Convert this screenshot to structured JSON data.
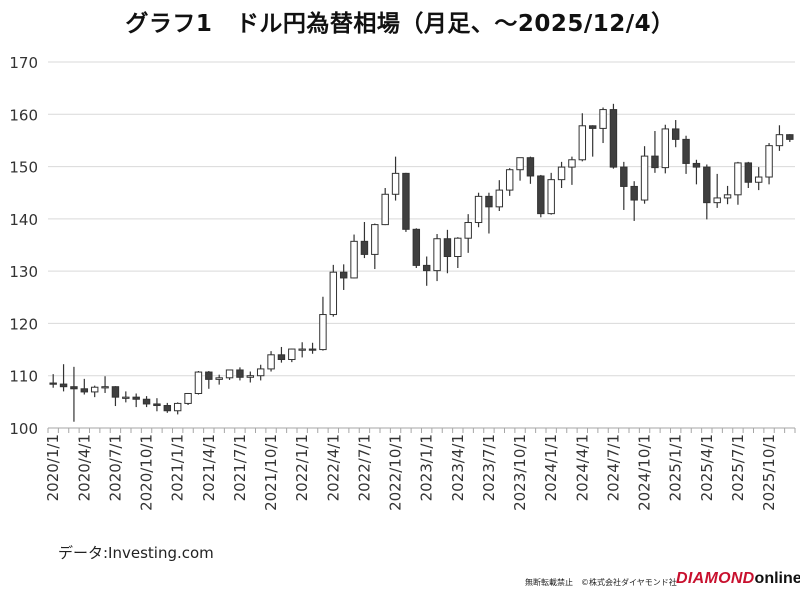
{
  "title": "グラフ1　ドル円為替相場（月足、〜2025/12/4）",
  "source_note": "データ:Investing.com",
  "footer_notice": "無断転載禁止　©株式会社ダイヤモンド社",
  "brand": {
    "name": "DIAMOND",
    "suffix": "online"
  },
  "colors": {
    "up_fill": "#ffffff",
    "down_fill": "#3f3f3f",
    "stroke": "#333333",
    "grid": "#d9d9d9",
    "axis": "#a6a6a6",
    "brand": "#c8102e"
  },
  "chart_data": {
    "type": "candlestick",
    "title": "グラフ1　ドル円為替相場（月足、〜2025/12/4）",
    "xlabel": "",
    "ylabel": "",
    "ylim": [
      100,
      170
    ],
    "y_ticks": [
      100,
      110,
      120,
      130,
      140,
      150,
      160,
      170
    ],
    "grid": true,
    "x_tick_labels": [
      "2020/1/1",
      "2020/4/1",
      "2020/7/1",
      "2020/10/1",
      "2021/1/1",
      "2021/4/1",
      "2021/7/1",
      "2021/10/1",
      "2022/1/1",
      "2022/4/1",
      "2022/7/1",
      "2022/10/1",
      "2023/1/1",
      "2023/4/1",
      "2023/7/1",
      "2023/10/1",
      "2024/1/1",
      "2024/4/1",
      "2024/7/1",
      "2024/10/1",
      "2025/1/1",
      "2025/4/1",
      "2025/7/1",
      "2025/10/1"
    ],
    "candles": [
      {
        "date": "2020/1/1",
        "open": 108.6,
        "high": 110.3,
        "low": 107.7,
        "close": 108.4
      },
      {
        "date": "2020/2/1",
        "open": 108.4,
        "high": 112.2,
        "low": 107.0,
        "close": 107.9
      },
      {
        "date": "2020/3/1",
        "open": 107.9,
        "high": 111.7,
        "low": 101.2,
        "close": 107.5
      },
      {
        "date": "2020/4/1",
        "open": 107.5,
        "high": 109.4,
        "low": 106.4,
        "close": 106.9
      },
      {
        "date": "2020/5/1",
        "open": 106.9,
        "high": 108.1,
        "low": 105.9,
        "close": 107.8
      },
      {
        "date": "2020/6/1",
        "open": 107.8,
        "high": 109.9,
        "low": 106.7,
        "close": 107.9
      },
      {
        "date": "2020/7/1",
        "open": 107.9,
        "high": 108.0,
        "low": 104.2,
        "close": 105.9
      },
      {
        "date": "2020/8/1",
        "open": 105.9,
        "high": 107.0,
        "low": 104.9,
        "close": 105.9
      },
      {
        "date": "2020/9/1",
        "open": 105.9,
        "high": 106.6,
        "low": 104.0,
        "close": 105.5
      },
      {
        "date": "2020/10/1",
        "open": 105.5,
        "high": 106.1,
        "low": 104.0,
        "close": 104.6
      },
      {
        "date": "2020/11/1",
        "open": 104.6,
        "high": 105.7,
        "low": 103.2,
        "close": 104.3
      },
      {
        "date": "2020/12/1",
        "open": 104.3,
        "high": 104.8,
        "low": 102.9,
        "close": 103.3
      },
      {
        "date": "2021/1/1",
        "open": 103.3,
        "high": 104.9,
        "low": 102.6,
        "close": 104.7
      },
      {
        "date": "2021/2/1",
        "open": 104.7,
        "high": 106.7,
        "low": 104.4,
        "close": 106.6
      },
      {
        "date": "2021/3/1",
        "open": 106.6,
        "high": 110.9,
        "low": 106.4,
        "close": 110.7
      },
      {
        "date": "2021/4/1",
        "open": 110.7,
        "high": 110.9,
        "low": 107.5,
        "close": 109.3
      },
      {
        "date": "2021/5/1",
        "open": 109.3,
        "high": 110.2,
        "low": 108.3,
        "close": 109.6
      },
      {
        "date": "2021/6/1",
        "open": 109.6,
        "high": 111.1,
        "low": 109.2,
        "close": 111.1
      },
      {
        "date": "2021/7/1",
        "open": 111.1,
        "high": 111.6,
        "low": 109.1,
        "close": 109.7
      },
      {
        "date": "2021/8/1",
        "open": 109.7,
        "high": 110.8,
        "low": 108.7,
        "close": 110.0
      },
      {
        "date": "2021/9/1",
        "open": 110.0,
        "high": 112.1,
        "low": 109.1,
        "close": 111.3
      },
      {
        "date": "2021/10/1",
        "open": 111.3,
        "high": 114.7,
        "low": 110.8,
        "close": 114.0
      },
      {
        "date": "2021/11/1",
        "open": 114.0,
        "high": 115.5,
        "low": 112.5,
        "close": 113.1
      },
      {
        "date": "2021/12/1",
        "open": 113.1,
        "high": 115.2,
        "low": 112.6,
        "close": 115.1
      },
      {
        "date": "2022/1/1",
        "open": 115.1,
        "high": 116.4,
        "low": 113.5,
        "close": 115.1
      },
      {
        "date": "2022/2/1",
        "open": 115.1,
        "high": 116.3,
        "low": 114.2,
        "close": 115.0
      },
      {
        "date": "2022/3/1",
        "open": 115.0,
        "high": 125.1,
        "low": 114.8,
        "close": 121.7
      },
      {
        "date": "2022/4/1",
        "open": 121.7,
        "high": 131.2,
        "low": 121.3,
        "close": 129.8
      },
      {
        "date": "2022/5/1",
        "open": 129.8,
        "high": 131.3,
        "low": 126.4,
        "close": 128.7
      },
      {
        "date": "2022/6/1",
        "open": 128.7,
        "high": 137.0,
        "low": 128.6,
        "close": 135.7
      },
      {
        "date": "2022/7/1",
        "open": 135.7,
        "high": 139.4,
        "low": 132.5,
        "close": 133.2
      },
      {
        "date": "2022/8/1",
        "open": 133.2,
        "high": 139.1,
        "low": 130.4,
        "close": 138.9
      },
      {
        "date": "2022/9/1",
        "open": 138.9,
        "high": 145.9,
        "low": 138.8,
        "close": 144.7
      },
      {
        "date": "2022/10/1",
        "open": 144.7,
        "high": 151.9,
        "low": 143.5,
        "close": 148.7
      },
      {
        "date": "2022/11/1",
        "open": 148.7,
        "high": 148.8,
        "low": 137.5,
        "close": 138.0
      },
      {
        "date": "2022/12/1",
        "open": 138.0,
        "high": 138.2,
        "low": 130.6,
        "close": 131.1
      },
      {
        "date": "2023/1/1",
        "open": 131.1,
        "high": 132.8,
        "low": 127.2,
        "close": 130.1
      },
      {
        "date": "2023/2/1",
        "open": 130.1,
        "high": 137.1,
        "low": 128.1,
        "close": 136.2
      },
      {
        "date": "2023/3/1",
        "open": 136.2,
        "high": 137.9,
        "low": 129.6,
        "close": 132.8
      },
      {
        "date": "2023/4/1",
        "open": 132.8,
        "high": 136.5,
        "low": 130.6,
        "close": 136.3
      },
      {
        "date": "2023/5/1",
        "open": 136.3,
        "high": 140.9,
        "low": 133.5,
        "close": 139.3
      },
      {
        "date": "2023/6/1",
        "open": 139.3,
        "high": 145.0,
        "low": 138.4,
        "close": 144.3
      },
      {
        "date": "2023/7/1",
        "open": 144.3,
        "high": 145.0,
        "low": 137.2,
        "close": 142.3
      },
      {
        "date": "2023/8/1",
        "open": 142.3,
        "high": 147.4,
        "low": 141.5,
        "close": 145.5
      },
      {
        "date": "2023/9/1",
        "open": 145.5,
        "high": 149.7,
        "low": 144.4,
        "close": 149.4
      },
      {
        "date": "2023/10/1",
        "open": 149.4,
        "high": 151.7,
        "low": 147.3,
        "close": 151.7
      },
      {
        "date": "2023/11/1",
        "open": 151.7,
        "high": 151.9,
        "low": 146.7,
        "close": 148.2
      },
      {
        "date": "2023/12/1",
        "open": 148.2,
        "high": 148.4,
        "low": 140.3,
        "close": 141.0
      },
      {
        "date": "2024/1/1",
        "open": 141.0,
        "high": 148.8,
        "low": 140.8,
        "close": 147.5
      },
      {
        "date": "2024/2/1",
        "open": 147.5,
        "high": 150.9,
        "low": 145.9,
        "close": 149.9
      },
      {
        "date": "2024/3/1",
        "open": 149.9,
        "high": 151.9,
        "low": 146.5,
        "close": 151.3
      },
      {
        "date": "2024/4/1",
        "open": 151.3,
        "high": 160.2,
        "low": 151.0,
        "close": 157.8
      },
      {
        "date": "2024/5/1",
        "open": 157.8,
        "high": 157.9,
        "low": 151.9,
        "close": 157.3
      },
      {
        "date": "2024/6/1",
        "open": 157.3,
        "high": 161.3,
        "low": 154.5,
        "close": 160.9
      },
      {
        "date": "2024/7/1",
        "open": 160.9,
        "high": 162.0,
        "low": 149.6,
        "close": 149.9
      },
      {
        "date": "2024/8/1",
        "open": 149.9,
        "high": 150.9,
        "low": 141.7,
        "close": 146.2
      },
      {
        "date": "2024/9/1",
        "open": 146.2,
        "high": 147.2,
        "low": 139.6,
        "close": 143.6
      },
      {
        "date": "2024/10/1",
        "open": 143.6,
        "high": 153.9,
        "low": 142.9,
        "close": 152.0
      },
      {
        "date": "2024/11/1",
        "open": 152.0,
        "high": 156.8,
        "low": 148.8,
        "close": 149.8
      },
      {
        "date": "2024/12/1",
        "open": 149.8,
        "high": 158.0,
        "low": 148.7,
        "close": 157.2
      },
      {
        "date": "2025/1/1",
        "open": 157.2,
        "high": 158.9,
        "low": 153.7,
        "close": 155.2
      },
      {
        "date": "2025/2/1",
        "open": 155.2,
        "high": 155.9,
        "low": 148.6,
        "close": 150.6
      },
      {
        "date": "2025/3/1",
        "open": 150.6,
        "high": 151.3,
        "low": 146.6,
        "close": 149.9
      },
      {
        "date": "2025/4/1",
        "open": 149.9,
        "high": 150.4,
        "low": 139.9,
        "close": 143.1
      },
      {
        "date": "2025/5/1",
        "open": 143.1,
        "high": 148.6,
        "low": 142.1,
        "close": 144.0
      },
      {
        "date": "2025/6/1",
        "open": 144.0,
        "high": 146.3,
        "low": 142.8,
        "close": 144.6
      },
      {
        "date": "2025/7/1",
        "open": 144.6,
        "high": 150.9,
        "low": 142.7,
        "close": 150.7
      },
      {
        "date": "2025/8/1",
        "open": 150.7,
        "high": 150.9,
        "low": 145.9,
        "close": 147.0
      },
      {
        "date": "2025/9/1",
        "open": 147.0,
        "high": 149.9,
        "low": 145.5,
        "close": 148.0
      },
      {
        "date": "2025/10/1",
        "open": 148.0,
        "high": 154.5,
        "low": 146.6,
        "close": 154.0
      },
      {
        "date": "2025/11/1",
        "open": 154.0,
        "high": 157.9,
        "low": 153.0,
        "close": 156.1
      },
      {
        "date": "2025/12/1",
        "open": 156.1,
        "high": 156.2,
        "low": 154.7,
        "close": 155.2
      }
    ]
  }
}
